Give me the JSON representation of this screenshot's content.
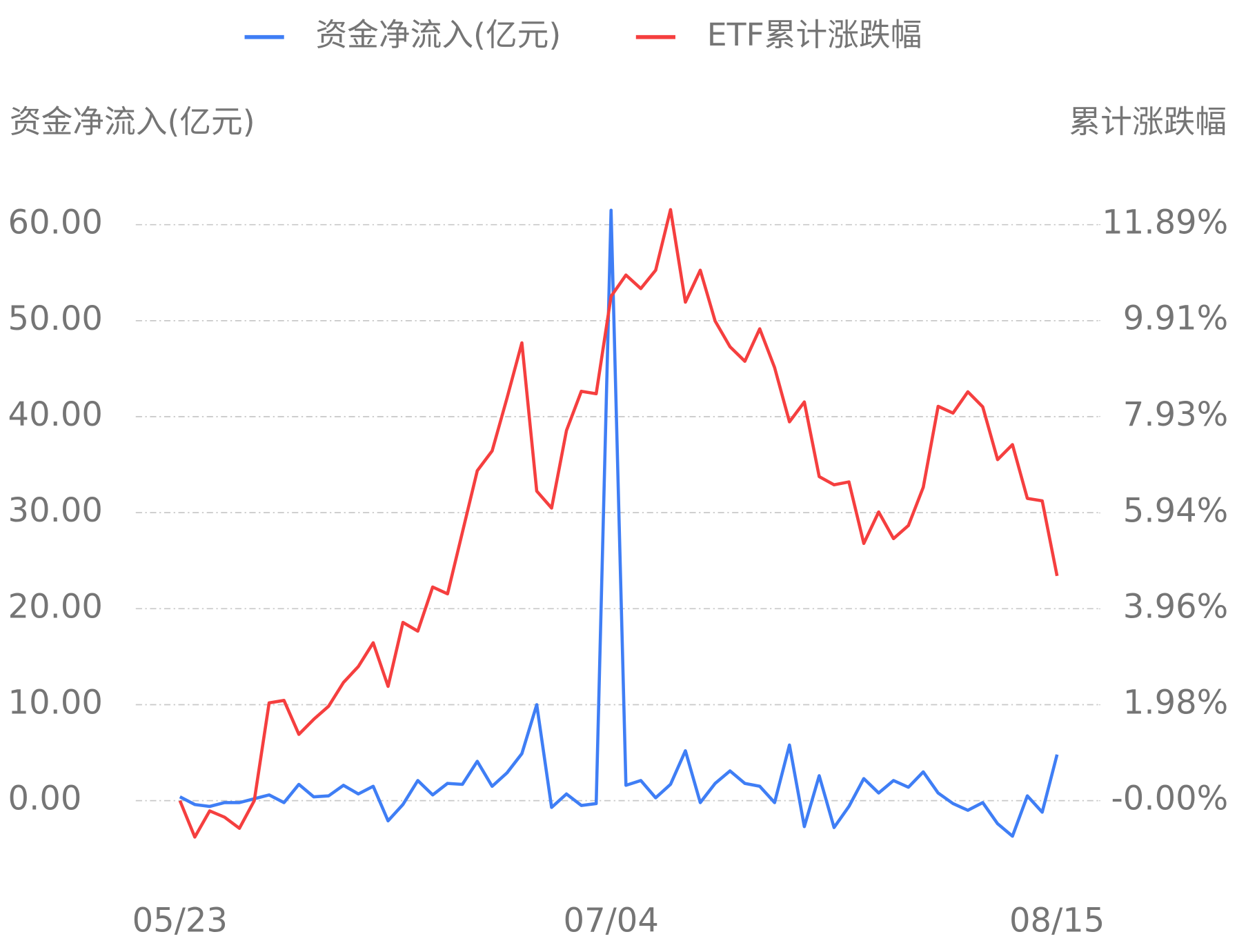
{
  "chart_data": {
    "type": "line",
    "y_label": "资金净流入(亿元)",
    "y2_label": "累计涨跌幅",
    "legend": "top",
    "grid": true,
    "categories": [
      "05/23",
      null,
      null,
      null,
      null,
      null,
      null,
      null,
      null,
      null,
      null,
      null,
      null,
      null,
      null,
      null,
      null,
      null,
      null,
      null,
      null,
      null,
      null,
      null,
      null,
      null,
      null,
      null,
      null,
      "07/04",
      null,
      null,
      null,
      null,
      null,
      null,
      null,
      null,
      null,
      null,
      null,
      null,
      null,
      null,
      null,
      null,
      null,
      null,
      null,
      null,
      null,
      null,
      null,
      null,
      null,
      null,
      null,
      null,
      null,
      "08/15"
    ],
    "ylim": [
      -5,
      65
    ],
    "yticks": [
      {
        "value": 0,
        "label": "0.00"
      },
      {
        "value": 10,
        "label": "10.00"
      },
      {
        "value": 20,
        "label": "20.00"
      },
      {
        "value": 30,
        "label": "30.00"
      },
      {
        "value": 40,
        "label": "40.00"
      },
      {
        "value": 50,
        "label": "50.00"
      },
      {
        "value": 60,
        "label": "60.00"
      }
    ],
    "y2lim": [
      -0.99,
      12.88
    ],
    "y2ticks": [
      {
        "value": 0,
        "label": "-0.00%"
      },
      {
        "value": 1.98,
        "label": "1.98%"
      },
      {
        "value": 3.96,
        "label": "3.96%"
      },
      {
        "value": 5.94,
        "label": "5.94%"
      },
      {
        "value": 7.93,
        "label": "7.93%"
      },
      {
        "value": 9.91,
        "label": "9.91%"
      },
      {
        "value": 11.89,
        "label": "11.89%"
      }
    ],
    "series": [
      {
        "name": "资金净流入(亿元)",
        "color": "#3f7ef5",
        "values": [
          0.4,
          -0.4,
          -0.6,
          -0.2,
          -0.2,
          0.2,
          0.6,
          -0.2,
          1.7,
          0.4,
          0.5,
          1.6,
          0.7,
          1.5,
          -2.1,
          -0.4,
          2.1,
          0.6,
          1.8,
          1.7,
          4.1,
          1.5,
          2.9,
          4.9,
          10.0,
          -0.7,
          0.7,
          -0.5,
          -0.3,
          61.5,
          1.6,
          2.1,
          0.3,
          1.7,
          5.2,
          -0.2,
          1.8,
          3.1,
          1.8,
          1.5,
          -0.2,
          5.8,
          -2.7,
          2.6,
          -2.8,
          -0.6,
          2.3,
          0.8,
          2.1,
          1.4,
          3.0,
          0.8,
          -0.3,
          -1.0,
          -0.2,
          -2.4,
          -3.7,
          0.5,
          -1.2,
          4.8
        ]
      },
      {
        "name": "ETF累计涨跌幅",
        "color": "#f53f3f",
        "axis": "y2",
        "values": [
          0.0,
          -0.75,
          -0.21,
          -0.34,
          -0.57,
          0.0,
          2.02,
          2.07,
          1.37,
          1.68,
          1.95,
          2.44,
          2.77,
          3.26,
          2.36,
          3.68,
          3.5,
          4.41,
          4.27,
          5.54,
          6.81,
          7.22,
          8.31,
          9.45,
          6.39,
          6.04,
          7.64,
          8.45,
          8.4,
          10.41,
          10.85,
          10.57,
          10.95,
          12.2,
          10.29,
          10.95,
          9.9,
          9.37,
          9.07,
          9.74,
          8.94,
          7.82,
          8.23,
          6.69,
          6.52,
          6.58,
          5.31,
          5.96,
          5.41,
          5.68,
          6.47,
          8.14,
          8.0,
          8.44,
          8.13,
          7.04,
          7.35,
          6.24,
          6.19,
          4.64
        ]
      }
    ]
  }
}
